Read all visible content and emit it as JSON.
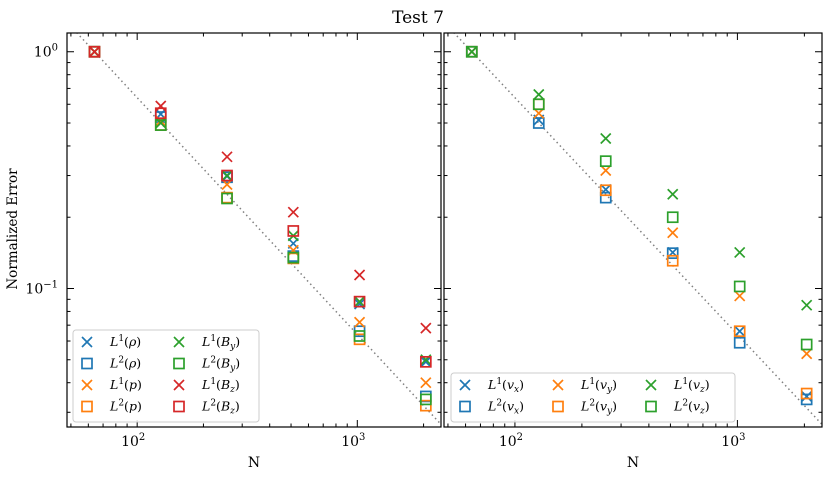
{
  "figure_title": "Test 7",
  "y_axis_label": "Normalized Error",
  "colors": {
    "blue": "#1f77b4",
    "orange": "#ff7f0e",
    "green": "#2ca02c",
    "red": "#d62728",
    "reference": "#808080"
  },
  "chart_data": [
    {
      "type": "scatter",
      "panel": "left",
      "xlabel": "N",
      "ylabel": "Normalized Error",
      "xscale": "log",
      "yscale": "log",
      "xlim": [
        48,
        2400
      ],
      "ylim": [
        0.026,
        1.2
      ],
      "x_ticks": [
        {
          "value": 100,
          "base": "10",
          "exp": "2"
        },
        {
          "value": 1000,
          "base": "10",
          "exp": "3"
        }
      ],
      "y_ticks": [
        {
          "value": 0.1,
          "base": "10",
          "exp": "−1"
        },
        {
          "value": 1,
          "base": "10",
          "exp": "0"
        }
      ],
      "legend_position": "bottom-left",
      "legend_columns": 2,
      "reference_line": {
        "style": "dotted",
        "slope": -1,
        "points": [
          [
            48,
            1.333
          ],
          [
            2400,
            0.02667
          ]
        ]
      },
      "x": [
        64,
        128,
        256,
        512,
        1024,
        2048
      ],
      "series": [
        {
          "name": "L1(rho)",
          "label": {
            "pre": "L",
            "sup": "1",
            "arg": "ρ",
            "sub": ""
          },
          "marker": "x",
          "color": "#1f77b4",
          "values": [
            1.0,
            0.545,
            0.298,
            0.155,
            0.086,
            0.049
          ]
        },
        {
          "name": "L2(rho)",
          "label": {
            "pre": "L",
            "sup": "2",
            "arg": "ρ",
            "sub": ""
          },
          "marker": "square",
          "color": "#1f77b4",
          "values": [
            1.0,
            0.53,
            0.295,
            0.137,
            0.066,
            0.035
          ]
        },
        {
          "name": "L1(p)",
          "label": {
            "pre": "L",
            "sup": "1",
            "arg": "p",
            "sub": ""
          },
          "marker": "x",
          "color": "#ff7f0e",
          "values": [
            1.0,
            0.51,
            0.275,
            0.145,
            0.072,
            0.04
          ]
        },
        {
          "name": "L2(p)",
          "label": {
            "pre": "L",
            "sup": "2",
            "arg": "p",
            "sub": ""
          },
          "marker": "square",
          "color": "#ff7f0e",
          "values": [
            1.0,
            0.49,
            0.242,
            0.134,
            0.061,
            0.032
          ]
        },
        {
          "name": "L1(By)",
          "label": {
            "pre": "L",
            "sup": "1",
            "arg": "B",
            "sub": "y"
          },
          "marker": "x",
          "color": "#2ca02c",
          "values": [
            1.0,
            0.5,
            0.3,
            0.167,
            0.088,
            0.05
          ]
        },
        {
          "name": "L2(By)",
          "label": {
            "pre": "L",
            "sup": "2",
            "arg": "B",
            "sub": "y"
          },
          "marker": "square",
          "color": "#2ca02c",
          "values": [
            1.0,
            0.49,
            0.24,
            0.135,
            0.063,
            0.034
          ]
        },
        {
          "name": "L1(Bz)",
          "label": {
            "pre": "L",
            "sup": "1",
            "arg": "B",
            "sub": "z"
          },
          "marker": "x",
          "color": "#d62728",
          "values": [
            1.0,
            0.59,
            0.36,
            0.21,
            0.114,
            0.068
          ]
        },
        {
          "name": "L2(Bz)",
          "label": {
            "pre": "L",
            "sup": "2",
            "arg": "B",
            "sub": "z"
          },
          "marker": "square",
          "color": "#d62728",
          "values": [
            1.0,
            0.55,
            0.3,
            0.175,
            0.088,
            0.049
          ]
        }
      ]
    },
    {
      "type": "scatter",
      "panel": "right",
      "xlabel": "N",
      "ylabel": "",
      "xscale": "log",
      "yscale": "log",
      "xlim": [
        48,
        2400
      ],
      "ylim": [
        0.026,
        1.2
      ],
      "x_ticks": [
        {
          "value": 100,
          "base": "10",
          "exp": "2"
        },
        {
          "value": 1000,
          "base": "10",
          "exp": "3"
        }
      ],
      "y_ticks": [],
      "legend_position": "bottom-left",
      "legend_columns": 3,
      "reference_line": {
        "style": "dotted",
        "slope": -1,
        "points": [
          [
            48,
            1.333
          ],
          [
            2400,
            0.02667
          ]
        ]
      },
      "x": [
        64,
        128,
        256,
        512,
        1024,
        2048
      ],
      "series": [
        {
          "name": "L1(vx)",
          "label": {
            "pre": "L",
            "sup": "1",
            "arg": "v",
            "sub": "x"
          },
          "marker": "x",
          "color": "#1f77b4",
          "values": [
            1.0,
            0.515,
            0.262,
            0.142,
            0.066,
            0.035
          ]
        },
        {
          "name": "L2(vx)",
          "label": {
            "pre": "L",
            "sup": "2",
            "arg": "v",
            "sub": "x"
          },
          "marker": "square",
          "color": "#1f77b4",
          "values": [
            1.0,
            0.5,
            0.242,
            0.141,
            0.059,
            0.034
          ]
        },
        {
          "name": "L1(vy)",
          "label": {
            "pre": "L",
            "sup": "1",
            "arg": "v",
            "sub": "y"
          },
          "marker": "x",
          "color": "#ff7f0e",
          "values": [
            1.0,
            0.55,
            0.315,
            0.172,
            0.093,
            0.053
          ]
        },
        {
          "name": "L2(vy)",
          "label": {
            "pre": "L",
            "sup": "2",
            "arg": "v",
            "sub": "y"
          },
          "marker": "square",
          "color": "#ff7f0e",
          "values": [
            1.0,
            0.6,
            0.26,
            0.131,
            0.066,
            0.036
          ]
        },
        {
          "name": "L1(vz)",
          "label": {
            "pre": "L",
            "sup": "1",
            "arg": "v",
            "sub": "z"
          },
          "marker": "x",
          "color": "#2ca02c",
          "values": [
            1.0,
            0.66,
            0.43,
            0.25,
            0.142,
            0.085
          ]
        },
        {
          "name": "L2(vz)",
          "label": {
            "pre": "L",
            "sup": "2",
            "arg": "v",
            "sub": "z"
          },
          "marker": "square",
          "color": "#2ca02c",
          "values": [
            1.0,
            0.6,
            0.345,
            0.2,
            0.102,
            0.058
          ]
        }
      ]
    }
  ]
}
